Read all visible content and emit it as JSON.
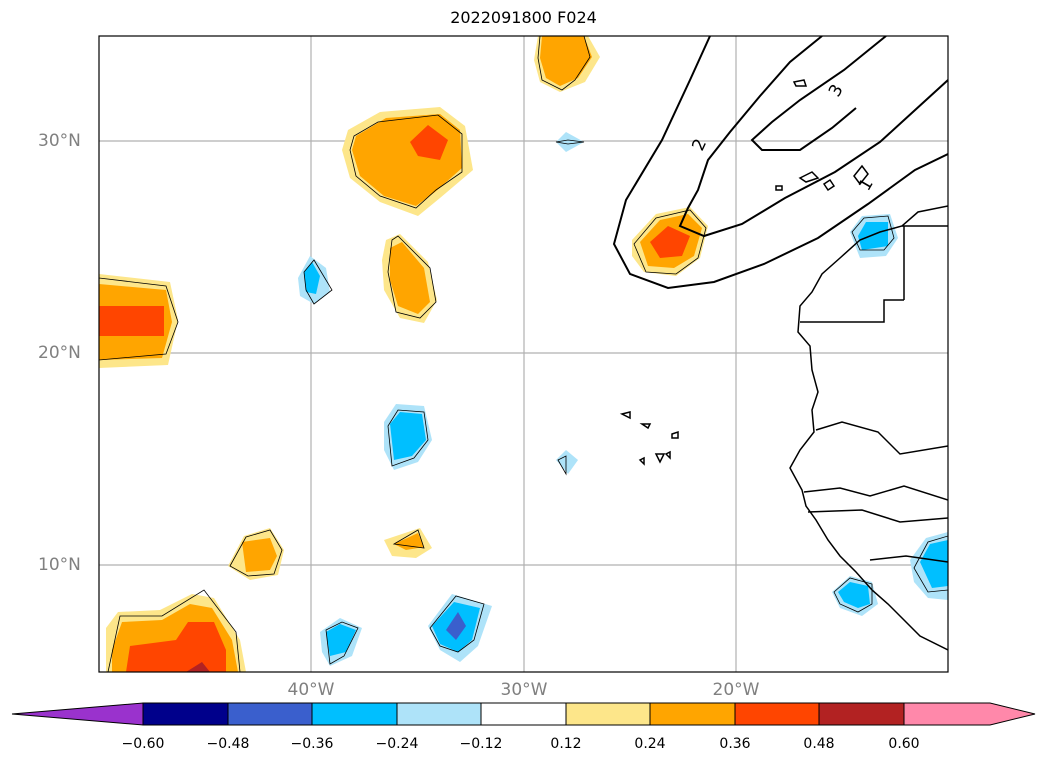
{
  "title": "2022091800 F024",
  "latitude_labels": [
    "30°N",
    "20°N",
    "10°N"
  ],
  "longitude_labels": [
    "40°W",
    "30°W",
    "20°W"
  ],
  "contour_labels": [
    "3",
    "2",
    "1"
  ],
  "colorbar": {
    "ticks": [
      "−0.60",
      "−0.48",
      "−0.36",
      "−0.24",
      "−0.12",
      "0.12",
      "0.24",
      "0.36",
      "0.48",
      "0.60"
    ],
    "colors": [
      "#9a32cd",
      "#00008b",
      "#3a5fcd",
      "#00bfff",
      "#aee3f9",
      "#ffffff",
      "#fde68a",
      "#ffa500",
      "#ff4500",
      "#b22222",
      "#ff88aa"
    ]
  }
}
